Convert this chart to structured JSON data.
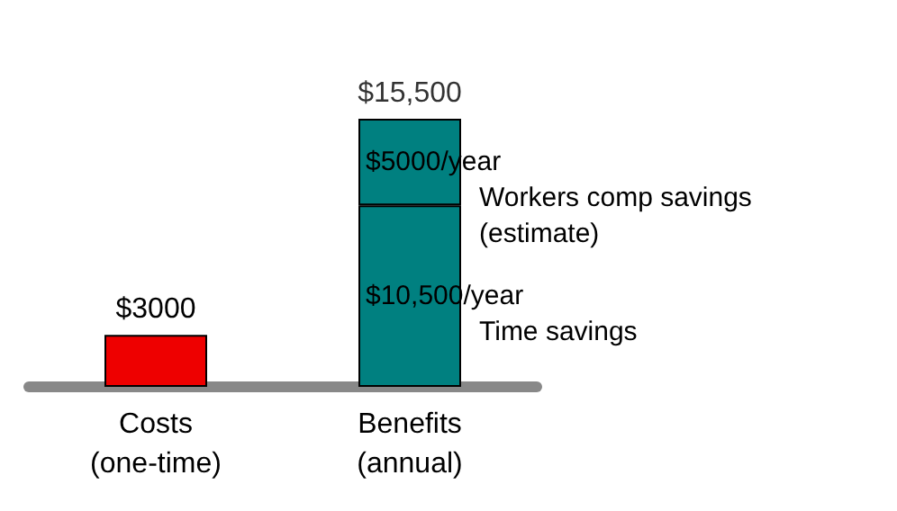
{
  "chart_data": {
    "type": "bar",
    "stacked": true,
    "categories": [
      "Costs\n(one-time)",
      "Benefits\n(annual)"
    ],
    "series": [
      {
        "colors": [
          "#ee0000",
          "#008080"
        ],
        "values": [
          3000,
          10500
        ],
        "value_labels": [
          "$3000",
          "$10,500/year"
        ]
      },
      {
        "color": "#008080",
        "values": [
          null,
          5000
        ],
        "value_labels": [
          null,
          "$5000/year"
        ]
      }
    ],
    "totals": [
      null,
      "$15,500"
    ],
    "annotations": [
      "Workers comp savings\n(estimate)",
      "Time savings"
    ],
    "tick_labels": "x"
  }
}
